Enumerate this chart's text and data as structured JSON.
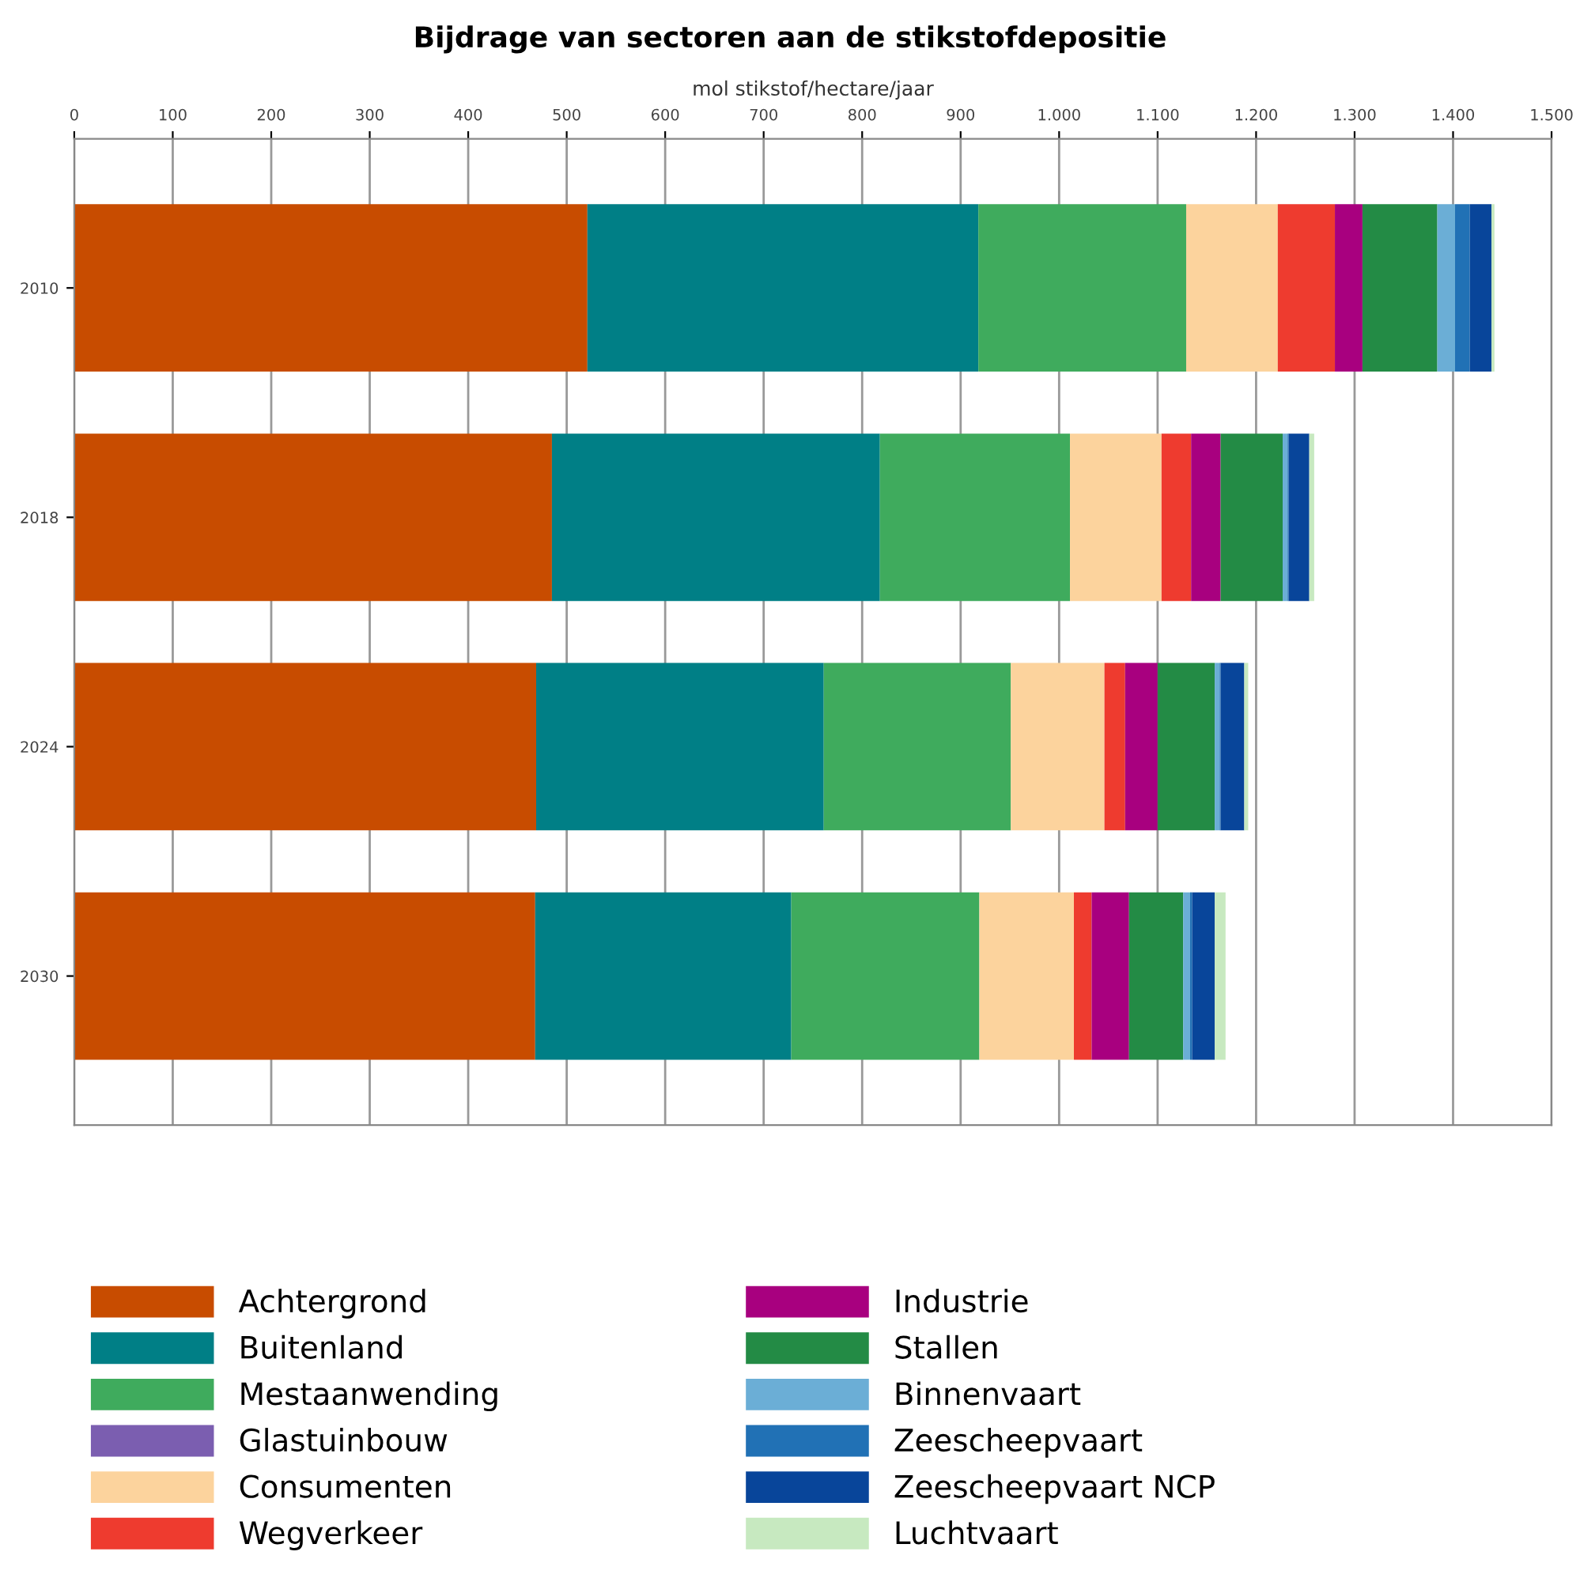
{
  "chart_data": {
    "type": "bar",
    "orientation": "horizontal",
    "stacked": true,
    "title": "Bijdrage van sectoren aan de stikstofdepositie",
    "xlabel": "mol stikstof/hectare/jaar",
    "categories": [
      "2010",
      "2018",
      "2024",
      "2030"
    ],
    "xlim": [
      0,
      1500
    ],
    "xticks": [
      0,
      100,
      200,
      300,
      400,
      500,
      600,
      700,
      800,
      900,
      {
        "value": 1000,
        "label": "1.000"
      },
      {
        "value": 1100,
        "label": "1.100"
      },
      {
        "value": 1200,
        "label": "1.200"
      },
      {
        "value": 1300,
        "label": "1.300"
      },
      {
        "value": 1400,
        "label": "1.400"
      },
      {
        "value": 1500,
        "label": "1.500"
      }
    ],
    "grid": "x",
    "legend": "bottom",
    "series": [
      {
        "name": "Achtergrond",
        "color": "#c84c00",
        "values": [
          521,
          485,
          469,
          468
        ]
      },
      {
        "name": "Buitenland",
        "color": "#007f86",
        "values": [
          397,
          333,
          292,
          260
        ]
      },
      {
        "name": "Mestaanwending",
        "color": "#3fab5d",
        "values": [
          211,
          193,
          190,
          191
        ]
      },
      {
        "name": "Glastuinbouw",
        "color": "#7b5eb0",
        "values": [
          0,
          0,
          0,
          0
        ]
      },
      {
        "name": "Consumenten",
        "color": "#fcd39d",
        "values": [
          93,
          93,
          95,
          96
        ]
      },
      {
        "name": "Wegverkeer",
        "color": "#ee3b2f",
        "values": [
          58,
          30,
          21,
          18
        ]
      },
      {
        "name": "Industrie",
        "color": "#a8007f",
        "values": [
          28,
          30,
          33,
          38
        ]
      },
      {
        "name": "Stallen",
        "color": "#238b45",
        "values": [
          76,
          63,
          58,
          55
        ]
      },
      {
        "name": "Binnenvaart",
        "color": "#6baed6",
        "values": [
          18,
          5,
          5,
          7
        ]
      },
      {
        "name": "Zeescheepvaart",
        "color": "#2171b5",
        "values": [
          15,
          1,
          1,
          2
        ]
      },
      {
        "name": "Zeescheepvaart NCP",
        "color": "#08459a",
        "values": [
          22,
          21,
          24,
          23
        ]
      },
      {
        "name": "Luchtvaart",
        "color": "#c7e9c0",
        "values": [
          3,
          5,
          4,
          11
        ]
      }
    ]
  }
}
